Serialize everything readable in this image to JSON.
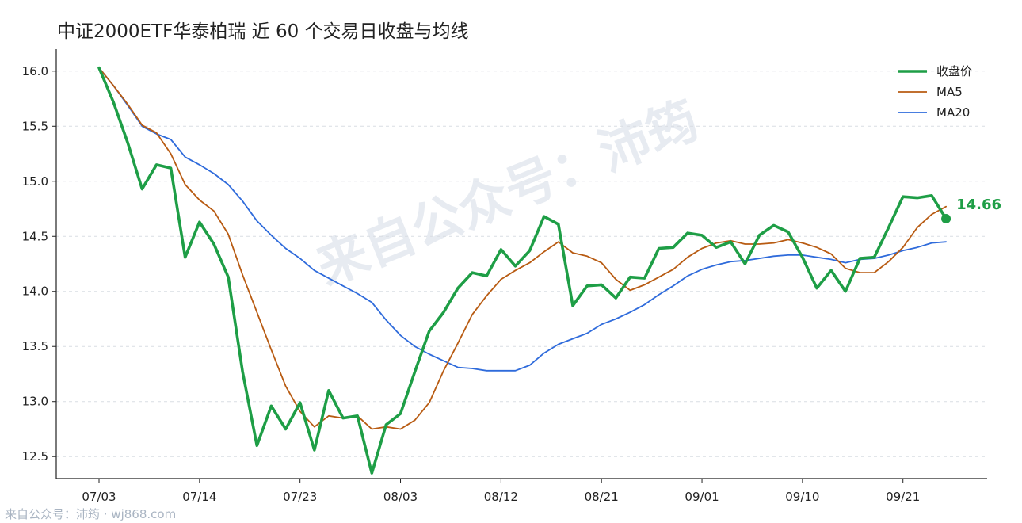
{
  "title": "中证2000ETF华泰柏瑞 近 60 个交易日收盘与均线",
  "watermark": "来自公众号：沛筠",
  "footer": "来自公众号：沛筠 · wj868.com",
  "colors": {
    "close": "#1e9e46",
    "ma5": "#b85b12",
    "ma20": "#2f6bdb"
  },
  "chart_data": {
    "type": "line",
    "title": "中证2000ETF华泰柏瑞 近 60 个交易日收盘与均线",
    "xlabel": "",
    "ylabel": "",
    "ylim": [
      12.3,
      16.2
    ],
    "yticks": [
      12.5,
      13.0,
      13.5,
      14.0,
      14.5,
      15.0,
      15.5,
      16.0
    ],
    "grid": "horizontal dashed",
    "legend_position": "top-right",
    "xtick_labels": [
      "07/03",
      "07/14",
      "07/23",
      "08/03",
      "08/12",
      "08/21",
      "09/01",
      "09/10",
      "09/21"
    ],
    "xtick_index": [
      0,
      7,
      14,
      21,
      28,
      35,
      42,
      49,
      56
    ],
    "last_value_label": "14.66",
    "series": [
      {
        "name": "收盘价",
        "values": [
          16.03,
          15.72,
          15.35,
          14.93,
          15.15,
          15.12,
          14.31,
          14.63,
          14.43,
          14.13,
          13.27,
          12.6,
          12.96,
          12.75,
          12.99,
          12.56,
          13.1,
          12.85,
          12.87,
          12.35,
          12.79,
          12.89,
          13.27,
          13.64,
          13.81,
          14.03,
          14.17,
          14.14,
          14.38,
          14.23,
          14.37,
          14.68,
          14.61,
          13.87,
          14.05,
          14.06,
          13.94,
          14.13,
          14.12,
          14.39,
          14.4,
          14.53,
          14.51,
          14.4,
          14.45,
          14.25,
          14.51,
          14.6,
          14.54,
          14.31,
          14.03,
          14.19,
          14.0,
          14.3,
          14.31,
          14.58,
          14.86,
          14.85,
          14.87,
          14.66
        ]
      },
      {
        "name": "MA5",
        "values": [
          16.03,
          15.87,
          15.7,
          15.51,
          15.44,
          15.25,
          14.97,
          14.83,
          14.73,
          14.52,
          14.15,
          13.81,
          13.47,
          13.14,
          12.91,
          12.77,
          12.87,
          12.85,
          12.87,
          12.75,
          12.77,
          12.75,
          12.83,
          12.99,
          13.28,
          13.53,
          13.79,
          13.96,
          14.11,
          14.19,
          14.26,
          14.36,
          14.45,
          14.35,
          14.32,
          14.26,
          14.11,
          14.01,
          14.06,
          14.13,
          14.2,
          14.31,
          14.39,
          14.44,
          14.46,
          14.43,
          14.43,
          14.44,
          14.47,
          14.44,
          14.4,
          14.34,
          14.21,
          14.17,
          14.17,
          14.27,
          14.4,
          14.58,
          14.7,
          14.77
        ]
      },
      {
        "name": "MA20",
        "values": [
          16.03,
          15.87,
          15.69,
          15.5,
          15.43,
          15.38,
          15.22,
          15.15,
          15.07,
          14.97,
          14.82,
          14.64,
          14.51,
          14.39,
          14.3,
          14.19,
          14.12,
          14.05,
          13.98,
          13.9,
          13.74,
          13.6,
          13.5,
          13.43,
          13.37,
          13.31,
          13.3,
          13.28,
          13.28,
          13.28,
          13.33,
          13.44,
          13.52,
          13.57,
          13.62,
          13.7,
          13.75,
          13.81,
          13.88,
          13.97,
          14.05,
          14.14,
          14.2,
          14.24,
          14.27,
          14.28,
          14.3,
          14.32,
          14.33,
          14.33,
          14.31,
          14.29,
          14.26,
          14.29,
          14.3,
          14.33,
          14.37,
          14.4,
          14.44,
          14.45
        ]
      }
    ]
  }
}
